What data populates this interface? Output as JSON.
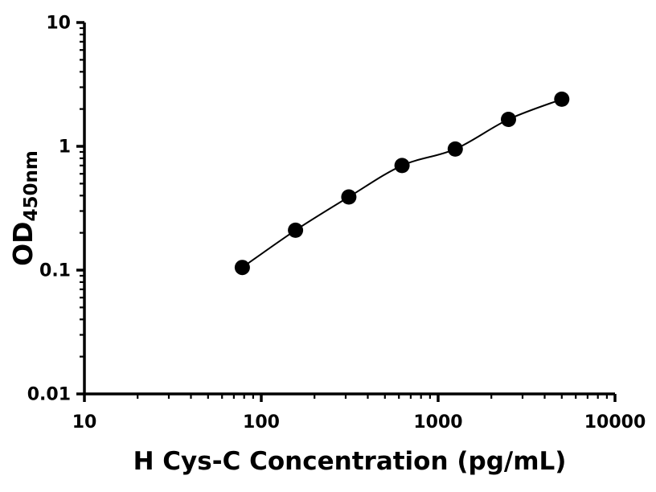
{
  "chart_data": {
    "type": "scatter",
    "title": "",
    "xlabel": "H Cys-C Concentration (pg/mL)",
    "ylabel_main": "OD",
    "ylabel_sub": "450nm",
    "xscale": "log",
    "yscale": "log",
    "xlim": [
      10,
      10000
    ],
    "ylim": [
      0.01,
      10
    ],
    "x_ticks": [
      10,
      100,
      1000,
      10000
    ],
    "x_tick_labels": [
      "10",
      "100",
      "1000",
      "10000"
    ],
    "y_ticks": [
      0.01,
      0.1,
      1,
      10
    ],
    "y_tick_labels": [
      "0.01",
      "0.1",
      "1",
      "10"
    ],
    "grid": false,
    "legend": "none",
    "curve": "smooth-through-points",
    "x": [
      78.125,
      156.25,
      312.5,
      625,
      1250,
      2500,
      5000
    ],
    "y": [
      0.105,
      0.21,
      0.39,
      0.7,
      0.95,
      1.65,
      2.4
    ],
    "marker": "filled-circle",
    "marker_color": "#000000",
    "line_color": "#000000",
    "axis_color": "#000000",
    "background_color": "#ffffff"
  }
}
